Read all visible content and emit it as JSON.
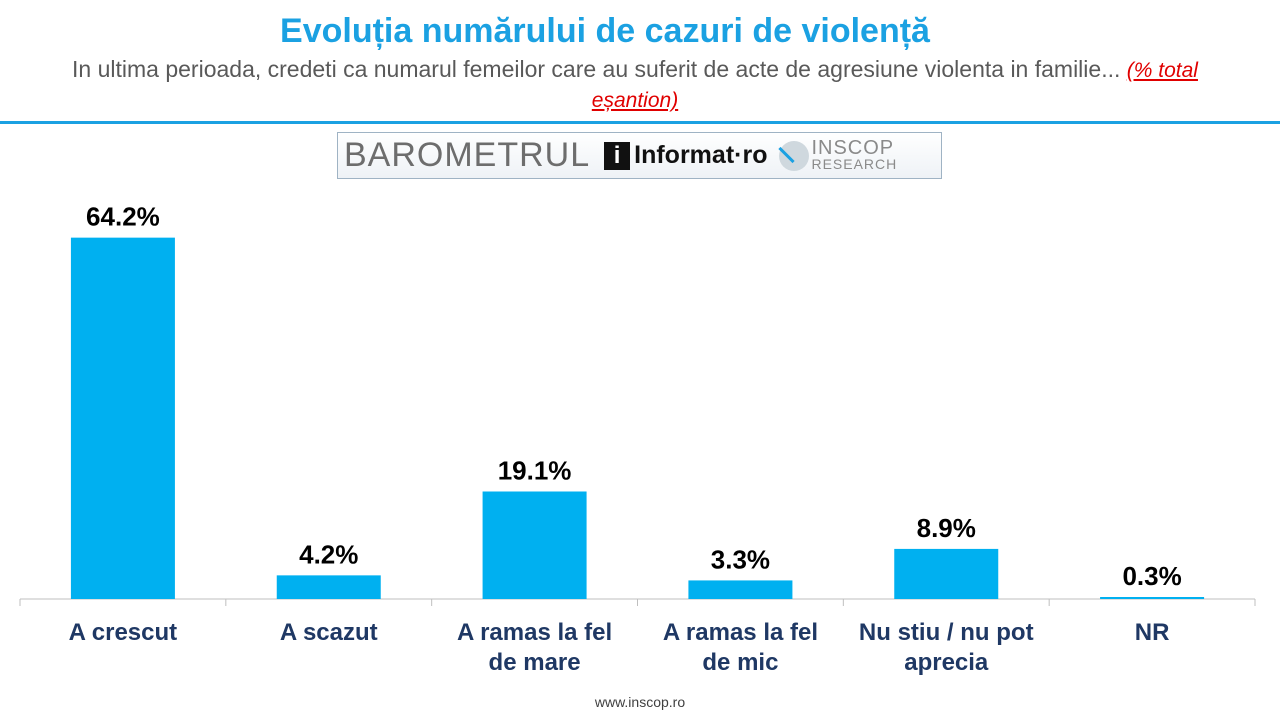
{
  "header": {
    "title": "Evoluția numărului de cazuri de violență",
    "subtitle": "In ultima perioada, credeti ca numarul femeilor care au suferit de acte de agresiune violenta in familie...",
    "subtitle_note": "(% total eșantion)"
  },
  "logo": {
    "barometru": "BAROMETRUL",
    "i_mark": "i",
    "informat": "Informat·ro",
    "inscop_line1": "INSCOP",
    "inscop_line2": "RESEARCH"
  },
  "footer": {
    "url": "www.inscop.ro"
  },
  "colors": {
    "accent": "#1BA1E2",
    "bar": "#00B0F0",
    "note": "#E00000"
  },
  "chart_data": {
    "type": "bar",
    "categories": [
      [
        "A crescut"
      ],
      [
        "A scazut"
      ],
      [
        "A ramas la fel",
        "de mare"
      ],
      [
        "A ramas la fel",
        "de mic"
      ],
      [
        "Nu stiu / nu pot",
        "aprecia"
      ],
      [
        "NR"
      ]
    ],
    "values": [
      64.2,
      4.2,
      19.1,
      3.3,
      8.9,
      0.3
    ],
    "value_labels": [
      "64.2%",
      "4.2%",
      "19.1%",
      "3.3%",
      "8.9%",
      "0.3%"
    ],
    "ylim": [
      0,
      70
    ],
    "grid": false,
    "legend": "none"
  }
}
